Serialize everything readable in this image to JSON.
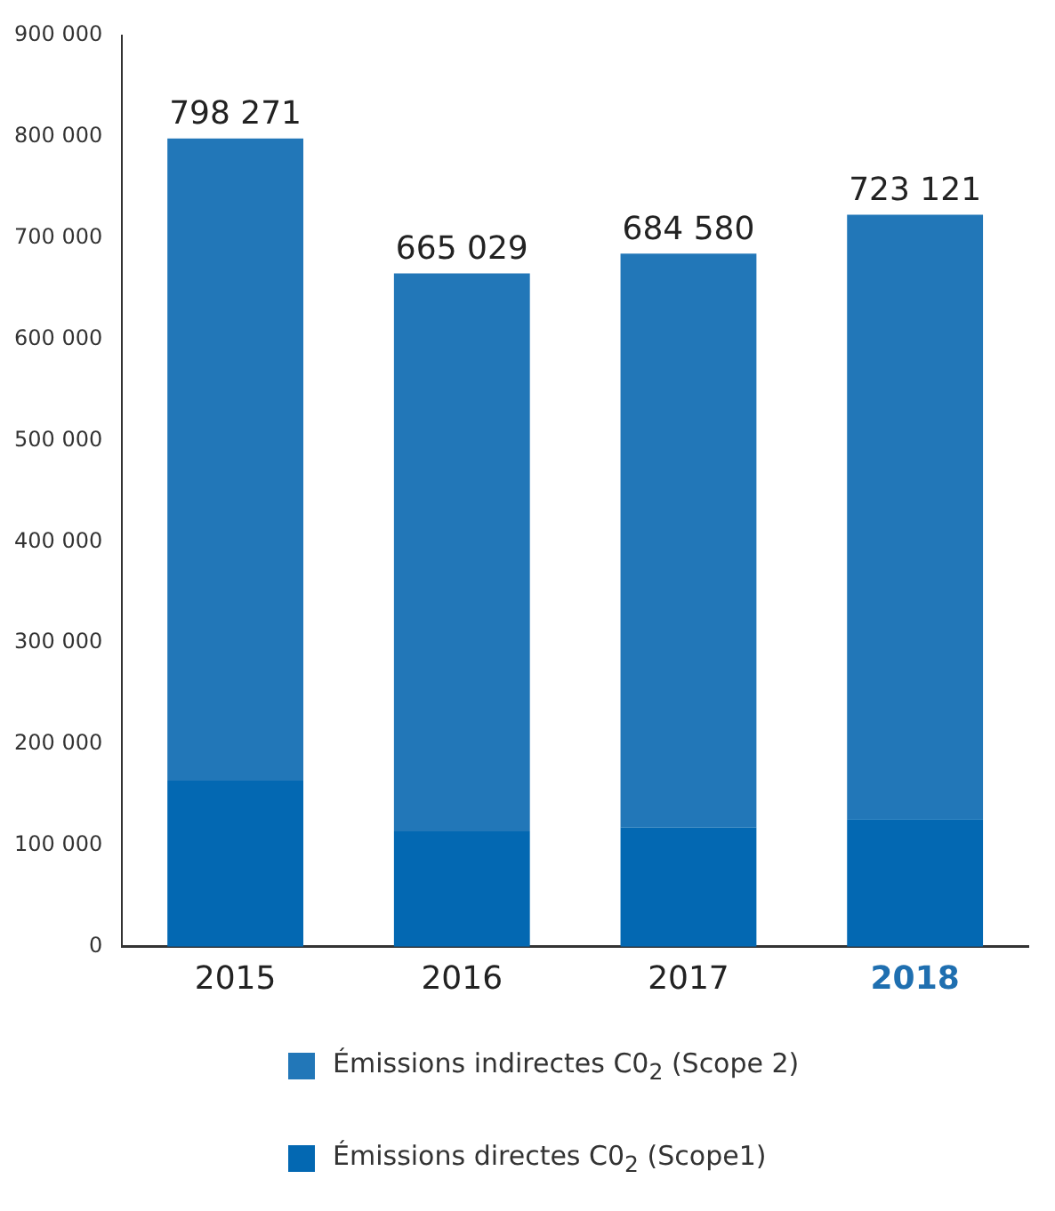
{
  "chart_data": {
    "type": "bar",
    "stacked": true,
    "categories": [
      "2015",
      "2016",
      "2017",
      "2018"
    ],
    "series": [
      {
        "name": "Émissions directes C0$_{2}$ (Scope1)",
        "color": "#0368b2",
        "values": [
          164000,
          114000,
          118000,
          126000
        ]
      },
      {
        "name": "Émissions indirectes C0$_{2}$ (Scope 2)",
        "color": "#2277b8",
        "values": [
          634271,
          551029,
          566580,
          597121
        ]
      }
    ],
    "totals": [
      "798 271",
      "665 029",
      "684 580",
      "723 121"
    ],
    "ylim": [
      0,
      900000
    ],
    "yticks": [
      {
        "value": 0,
        "label": "0"
      },
      {
        "value": 100000,
        "label": "100 000"
      },
      {
        "value": 200000,
        "label": "200 000"
      },
      {
        "value": 300000,
        "label": "300 000"
      },
      {
        "value": 400000,
        "label": "400 000"
      },
      {
        "value": 500000,
        "label": "500 000"
      },
      {
        "value": 600000,
        "label": "600 000"
      },
      {
        "value": 700000,
        "label": "700 000"
      },
      {
        "value": 800000,
        "label": "800 000"
      },
      {
        "value": 900000,
        "label": "900 000"
      }
    ],
    "grid": false,
    "legend": "bottom"
  }
}
